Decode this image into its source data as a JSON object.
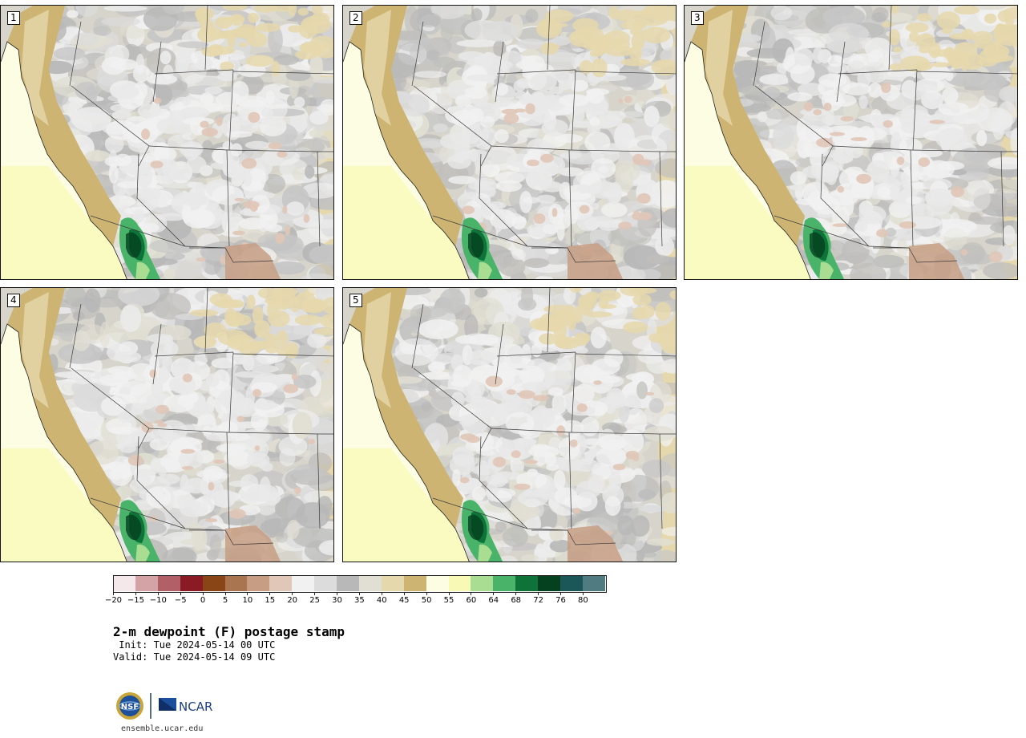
{
  "panels": [
    {
      "label": "1"
    },
    {
      "label": "2"
    },
    {
      "label": "3"
    },
    {
      "label": "4"
    },
    {
      "label": "5"
    }
  ],
  "colorbar": {
    "colors": [
      "#f4e8ea",
      "#d4a3a6",
      "#b06066",
      "#8a1a24",
      "#8a4516",
      "#a97450",
      "#c79e84",
      "#e0c7b7",
      "#f1f1f1",
      "#dcdcdc",
      "#b8b8b8",
      "#e1dfd3",
      "#e6d8ad",
      "#cdb472",
      "#fdfde3",
      "#f7f9b4",
      "#a9de92",
      "#49b36a",
      "#0d7339",
      "#05401f",
      "#1b5658",
      "#507b81"
    ],
    "tick_labels": [
      "−20",
      "−15",
      "−10",
      "−5",
      "0",
      "5",
      "10",
      "15",
      "20",
      "25",
      "30",
      "35",
      "40",
      "45",
      "50",
      "55",
      "60",
      "64",
      "68",
      "72",
      "76",
      "80"
    ]
  },
  "title": "2-m dewpoint (F) postage stamp",
  "init_line": " Init: Tue 2024-05-14 00 UTC",
  "valid_line": "Valid: Tue 2024-05-14 09 UTC",
  "logo": {
    "nsf": "NSF",
    "ncar": "NCAR"
  },
  "footer_url": "ensemble.ucar.edu"
}
